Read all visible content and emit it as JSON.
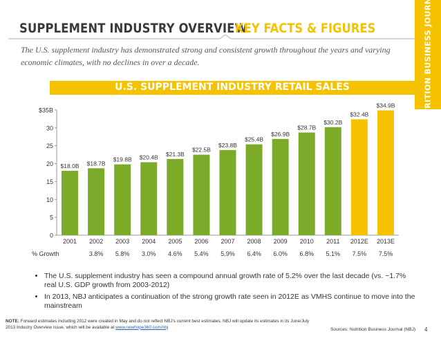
{
  "header": {
    "title": "SUPPLEMENT INDUSTRY OVERVIEW",
    "subtitle": "KEY FACTS & FIGURES",
    "side_label": "NUTRITION BUSINESS JOURNAL",
    "intro": "The U.S. supplement industry has demonstrated strong and consistent growth throughout the years and varying economic climates, with no declines in over a decade."
  },
  "colors": {
    "accent": "#f5c200",
    "bar_green": "#7cab2a",
    "bar_yellow": "#f5c200",
    "rule": "#c9c9c9"
  },
  "chart_data": {
    "type": "bar",
    "title": "U.S. SUPPLEMENT INDUSTRY RETAIL SALES",
    "categories": [
      "2001",
      "2002",
      "2003",
      "2004",
      "2005",
      "2006",
      "2007",
      "2008",
      "2009",
      "2010",
      "2011",
      "2012E",
      "2013E"
    ],
    "values": [
      18.0,
      18.7,
      19.8,
      20.4,
      21.3,
      22.5,
      23.8,
      25.4,
      26.9,
      28.7,
      30.2,
      32.4,
      34.9
    ],
    "data_labels": [
      "$18.0B",
      "$18.7B",
      "$19.8B",
      "$20.4B",
      "$21.3B",
      "$22.5B",
      "$23.8B",
      "$25.4B",
      "$26.9B",
      "$28.7B",
      "$30.2B",
      "$32.4B",
      "$34.9B"
    ],
    "estimate_flags": [
      false,
      false,
      false,
      false,
      false,
      false,
      false,
      false,
      false,
      false,
      false,
      true,
      true
    ],
    "ylim": [
      0,
      35
    ],
    "yticks": [
      0,
      5,
      10,
      15,
      20,
      25,
      30,
      35
    ],
    "ytick_labels": [
      "0",
      "5",
      "10",
      "15",
      "20",
      "25",
      "30",
      "$35B"
    ],
    "growth_label": "% Growth",
    "growth": [
      "",
      "3.8%",
      "5.8%",
      "3.0%",
      "4.6%",
      "5.4%",
      "5.9%",
      "6.4%",
      "6.0%",
      "6.8%",
      "5.1%",
      "7.5%",
      "7.5%"
    ]
  },
  "bullets": [
    "The U.S. supplement industry has seen a compound annual growth rate of 5.2% over the last decade (vs. ~1.7% real U.S. GDP growth from 2003-2012)",
    "In 2013, NBJ anticipates a continuation of the strong growth rate seen in 2012E as VMHS continue to move into the mainstream"
  ],
  "footer": {
    "note_label": "NOTE:",
    "note_text": "Forward estimates including 2012 were created in May and do not reflect NBJ's current best estimates. NBJ will update its estimates in its June/July 2013 Industry Overview issue, which will be available at",
    "note_link": "www.newhope360.com/nbj",
    "sources": "Sources: Nutrition Business Journal (NBJ)",
    "page": "4"
  }
}
